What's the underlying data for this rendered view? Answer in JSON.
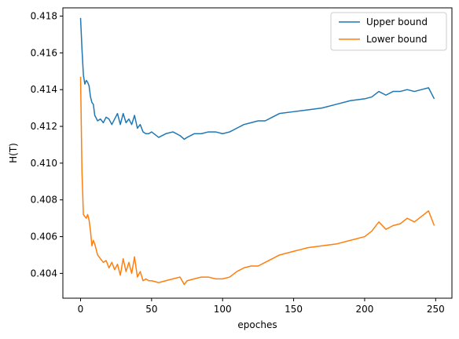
{
  "chart_data": {
    "type": "line",
    "title": "",
    "xlabel": "epoches",
    "ylabel": "H(T)",
    "xlim": [
      -12.45,
      261.45
    ],
    "ylim": [
      0.40265,
      0.41845
    ],
    "grid": false,
    "legend_position": "top-right",
    "x_ticks": [
      0,
      50,
      100,
      150,
      200,
      250
    ],
    "x_tick_labels": [
      "0",
      "50",
      "100",
      "150",
      "200",
      "250"
    ],
    "y_ticks": [
      0.404,
      0.406,
      0.408,
      0.41,
      0.412,
      0.414,
      0.416,
      0.418
    ],
    "y_tick_labels": [
      "0.404",
      "0.406",
      "0.408",
      "0.410",
      "0.412",
      "0.414",
      "0.416",
      "0.418"
    ],
    "series": [
      {
        "name": "Upper bound",
        "color": "#1f77b4",
        "x": [
          0,
          1,
          2,
          3,
          4,
          5,
          6,
          7,
          8,
          9,
          10,
          12,
          14,
          16,
          18,
          20,
          22,
          24,
          26,
          28,
          30,
          32,
          34,
          36,
          38,
          40,
          42,
          44,
          46,
          48,
          50,
          55,
          60,
          65,
          70,
          73,
          75,
          80,
          85,
          90,
          95,
          100,
          105,
          110,
          115,
          120,
          125,
          130,
          135,
          140,
          150,
          160,
          170,
          180,
          190,
          200,
          205,
          210,
          215,
          220,
          225,
          230,
          235,
          240,
          245,
          249
        ],
        "y": [
          0.4179,
          0.4162,
          0.4148,
          0.4143,
          0.4145,
          0.4144,
          0.4142,
          0.4136,
          0.4133,
          0.4132,
          0.4126,
          0.4123,
          0.4124,
          0.4122,
          0.4125,
          0.4124,
          0.4121,
          0.4124,
          0.4127,
          0.4121,
          0.4127,
          0.4122,
          0.4124,
          0.4121,
          0.4126,
          0.4119,
          0.4121,
          0.4117,
          0.4116,
          0.4116,
          0.4117,
          0.4114,
          0.4116,
          0.4117,
          0.4115,
          0.4113,
          0.4114,
          0.4116,
          0.4116,
          0.4117,
          0.4117,
          0.4116,
          0.4117,
          0.4119,
          0.4121,
          0.4122,
          0.4123,
          0.4123,
          0.4125,
          0.4127,
          0.4128,
          0.4129,
          0.413,
          0.4132,
          0.4134,
          0.4135,
          0.4136,
          0.4139,
          0.4137,
          0.4139,
          0.4139,
          0.414,
          0.4139,
          0.414,
          0.4141,
          0.4135
        ]
      },
      {
        "name": "Lower bound",
        "color": "#ff7f0e",
        "x": [
          0,
          1,
          2,
          3,
          4,
          5,
          6,
          7,
          8,
          9,
          10,
          12,
          14,
          16,
          18,
          20,
          22,
          24,
          26,
          28,
          30,
          32,
          34,
          36,
          38,
          40,
          42,
          44,
          46,
          48,
          50,
          55,
          60,
          65,
          70,
          73,
          75,
          80,
          85,
          90,
          95,
          100,
          105,
          110,
          115,
          120,
          125,
          130,
          135,
          140,
          150,
          160,
          170,
          180,
          190,
          200,
          205,
          210,
          215,
          220,
          225,
          230,
          235,
          240,
          245,
          249
        ],
        "y": [
          0.4147,
          0.4095,
          0.4072,
          0.4071,
          0.407,
          0.4072,
          0.4069,
          0.4063,
          0.4055,
          0.4058,
          0.4056,
          0.405,
          0.4048,
          0.4046,
          0.4047,
          0.4043,
          0.4046,
          0.4042,
          0.4045,
          0.4039,
          0.4048,
          0.4041,
          0.4046,
          0.404,
          0.4049,
          0.4038,
          0.4041,
          0.4036,
          0.4037,
          0.4036,
          0.4036,
          0.4035,
          0.4036,
          0.4037,
          0.4038,
          0.4034,
          0.4036,
          0.4037,
          0.4038,
          0.4038,
          0.4037,
          0.4037,
          0.4038,
          0.4041,
          0.4043,
          0.4044,
          0.4044,
          0.4046,
          0.4048,
          0.405,
          0.4052,
          0.4054,
          0.4055,
          0.4056,
          0.4058,
          0.406,
          0.4063,
          0.4068,
          0.4064,
          0.4066,
          0.4067,
          0.407,
          0.4068,
          0.4071,
          0.4074,
          0.4066
        ]
      }
    ]
  }
}
